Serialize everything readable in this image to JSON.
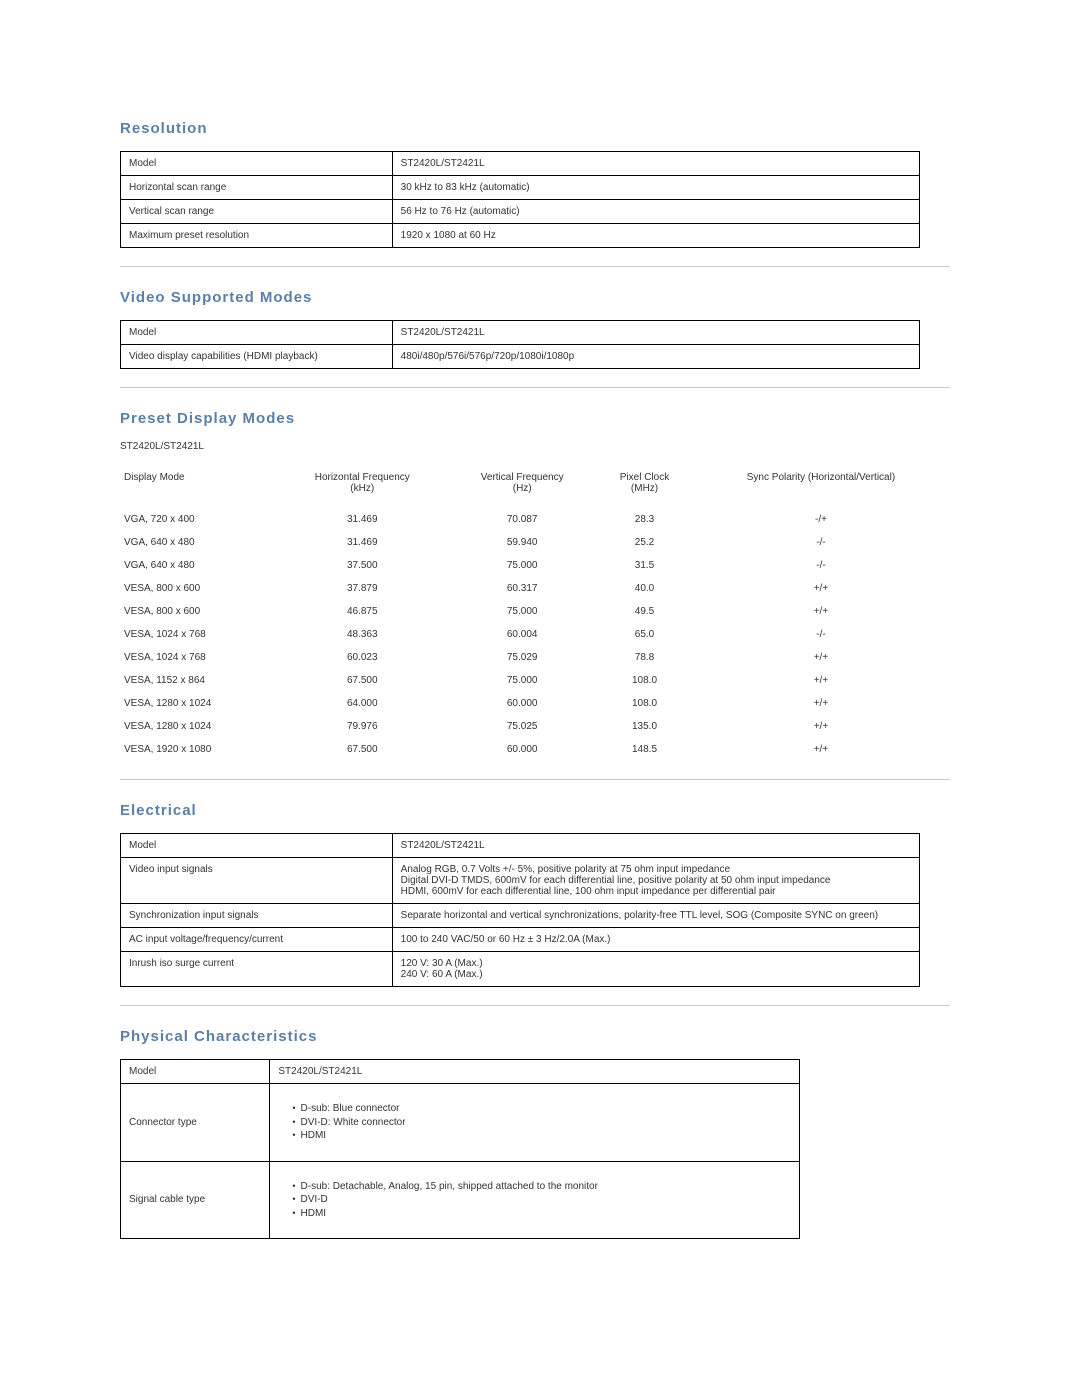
{
  "resolution": {
    "title": "Resolution",
    "rows": [
      [
        "Model",
        "ST2420L/ST2421L"
      ],
      [
        "Horizontal scan range",
        "30 kHz to 83 kHz (automatic)"
      ],
      [
        "Vertical scan range",
        "56 Hz to 76 Hz (automatic)"
      ],
      [
        "Maximum preset resolution",
        "1920 x 1080 at 60 Hz"
      ]
    ]
  },
  "video_modes": {
    "title": "Video Supported Modes",
    "rows": [
      [
        "Model",
        "ST2420L/ST2421L"
      ],
      [
        "Video display capabilities (HDMI playback)",
        "480i/480p/576i/576p/720p/1080i/1080p"
      ]
    ]
  },
  "preset": {
    "title": "Preset Display Modes",
    "subhead": "ST2420L/ST2421L",
    "columns": [
      {
        "label": "Display Mode",
        "sublabel": "",
        "align": "left"
      },
      {
        "label": "Horizontal Frequency",
        "sublabel": "(kHz)",
        "align": "center"
      },
      {
        "label": "Vertical Frequency",
        "sublabel": "(Hz)",
        "align": "center"
      },
      {
        "label": "Pixel Clock",
        "sublabel": "(MHz)",
        "align": "center"
      },
      {
        "label": "Sync Polarity (Horizontal/Vertical)",
        "sublabel": "",
        "align": "center"
      }
    ],
    "rows": [
      [
        "VGA, 720 x 400",
        "31.469",
        "70.087",
        "28.3",
        "-/+"
      ],
      [
        "VGA, 640 x 480",
        "31.469",
        "59.940",
        "25.2",
        "-/-"
      ],
      [
        "VGA, 640 x 480",
        "37.500",
        "75.000",
        "31.5",
        "-/-"
      ],
      [
        "VESA, 800 x 600",
        "37.879",
        "60.317",
        "40.0",
        "+/+"
      ],
      [
        "VESA, 800 x 600",
        "46.875",
        "75.000",
        "49.5",
        "+/+"
      ],
      [
        "VESA, 1024 x 768",
        "48.363",
        "60.004",
        "65.0",
        "-/-"
      ],
      [
        "VESA, 1024 x 768",
        "60.023",
        "75.029",
        "78.8",
        "+/+"
      ],
      [
        "VESA, 1152 x 864",
        "67.500",
        "75.000",
        "108.0",
        "+/+"
      ],
      [
        "VESA, 1280 x 1024",
        "64.000",
        "60.000",
        "108.0",
        "+/+"
      ],
      [
        "VESA, 1280 x 1024",
        "79.976",
        "75.025",
        "135.0",
        "+/+"
      ],
      [
        "VESA, 1920 x 1080",
        "67.500",
        "60.000",
        "148.5",
        "+/+"
      ]
    ]
  },
  "electrical": {
    "title": "Electrical",
    "rows": [
      [
        "Model",
        "ST2420L/ST2421L"
      ],
      [
        "Video input signals",
        "Analog RGB, 0.7 Volts +/- 5%, positive polarity at 75 ohm input impedance\nDigital DVI-D TMDS, 600mV for each differential line, positive polarity at 50 ohm input impedance\nHDMI, 600mV for each differential line, 100 ohm input impedance per differential pair"
      ],
      [
        "Synchronization input signals",
        "Separate horizontal and vertical synchronizations, polarity-free TTL level, SOG (Composite SYNC on green)"
      ],
      [
        "AC input voltage/frequency/current",
        "100 to 240 VAC/50 or 60 Hz ± 3 Hz/2.0A (Max.)"
      ],
      [
        "Inrush iso surge current",
        "120 V: 30 A (Max.)\n240 V: 60 A (Max.)"
      ]
    ]
  },
  "physical": {
    "title": "Physical Characteristics",
    "rows": [
      {
        "label": "Model",
        "type": "text",
        "value": "ST2420L/ST2421L"
      },
      {
        "label": "Connector type",
        "type": "list",
        "items": [
          "D-sub: Blue connector",
          "DVI-D: White connector",
          "HDMI"
        ]
      },
      {
        "label": "Signal cable type",
        "type": "list",
        "items": [
          "D-sub: Detachable, Analog, 15 pin, shipped attached to the monitor",
          "DVI-D",
          "HDMI"
        ]
      }
    ]
  }
}
